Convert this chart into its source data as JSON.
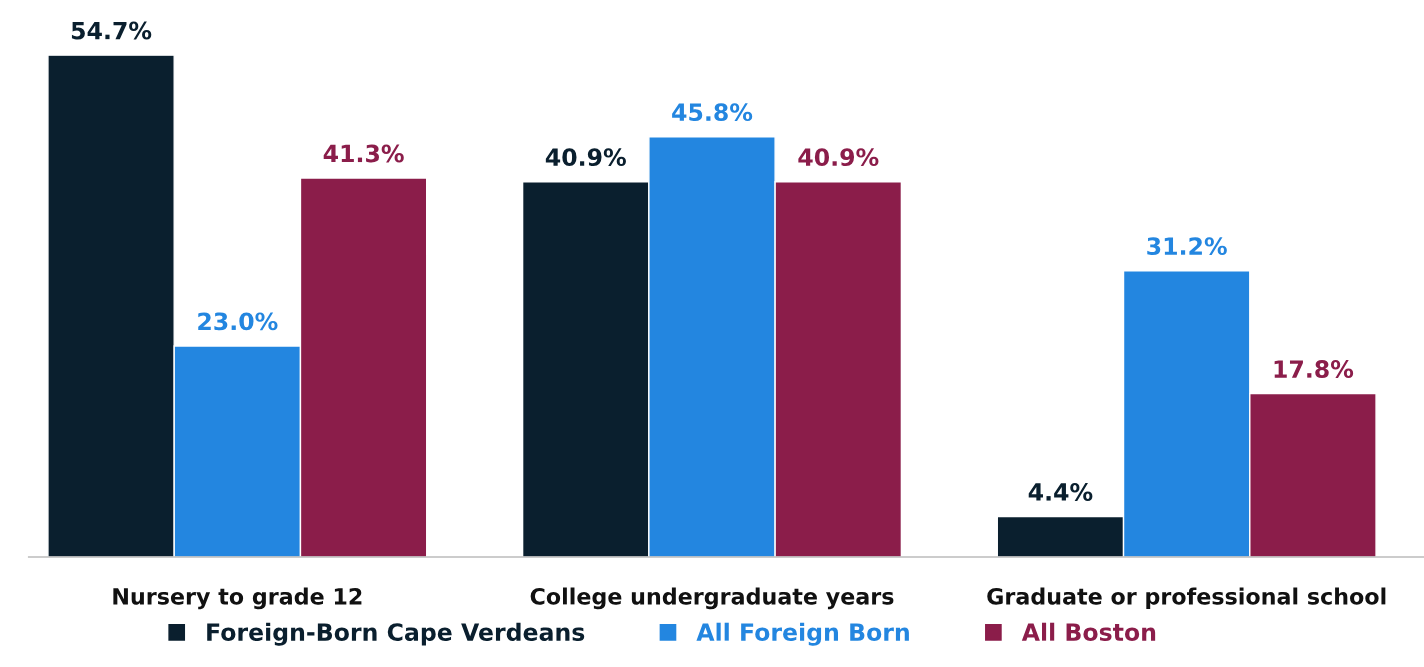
{
  "chart_data": {
    "type": "bar",
    "categories": [
      "Nursery to grade 12",
      "College undergraduate years",
      "Graduate or professional school"
    ],
    "series": [
      {
        "name": "Foreign-Born Cape Verdeans",
        "color": "#0a1f2e",
        "values": [
          54.7,
          40.9,
          4.4
        ],
        "value_labels": [
          "54.7%",
          "40.9%",
          "4.4%"
        ]
      },
      {
        "name": "All Foreign Born",
        "color": "#2386e0",
        "values": [
          23.0,
          45.8,
          31.2
        ],
        "value_labels": [
          "23.0%",
          "45.8%",
          "31.2%"
        ]
      },
      {
        "name": "All Boston",
        "color": "#8b1d4a",
        "values": [
          41.3,
          40.9,
          17.8
        ],
        "value_labels": [
          "41.3%",
          "40.9%",
          "17.8%"
        ]
      }
    ],
    "legend": "bottom",
    "grid": false
  }
}
